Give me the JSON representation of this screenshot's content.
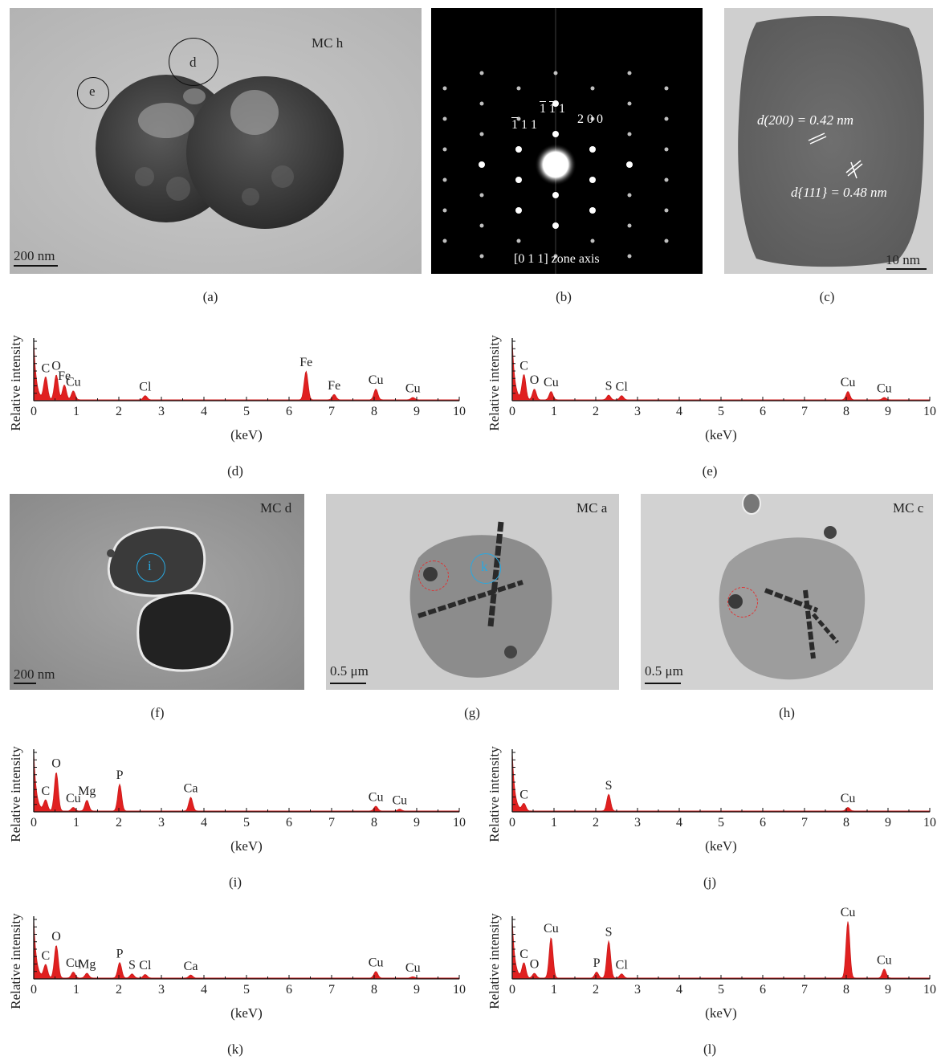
{
  "panels": {
    "a": {
      "label": "(a)",
      "sample": "MC h",
      "circle_1": "d",
      "circle_2": "e",
      "scale": "200 nm"
    },
    "b": {
      "label": "(b)",
      "spot_1": "111",
      "spot_2": "111",
      "spot_3": "200",
      "zone": "[0 1 1] zone axis"
    },
    "c": {
      "label": "(c)",
      "d200": "d(200) = 0.42 nm",
      "d111": "d{111} = 0.48 nm",
      "scale": "10 nm"
    },
    "f": {
      "label": "(f)",
      "sample": "MC d",
      "circle": "i",
      "scale": "200 nm"
    },
    "g": {
      "label": "(g)",
      "sample": "MC a",
      "circle": "k",
      "scale": "0.5 μm"
    },
    "h": {
      "label": "(h)",
      "sample": "MC c",
      "scale": "0.5 μm"
    }
  },
  "chart_data": [
    {
      "id": "d",
      "label": "(d)",
      "type": "area",
      "xlabel": "(keV)",
      "ylabel": "Relative intensity",
      "xlim": [
        0,
        10
      ],
      "xticks": [
        0,
        1,
        2,
        3,
        4,
        5,
        6,
        7,
        8,
        9,
        10
      ],
      "peaks": [
        {
          "x": 0.28,
          "y": 0.38,
          "label": "C"
        },
        {
          "x": 0.53,
          "y": 0.42,
          "label": "O"
        },
        {
          "x": 0.72,
          "y": 0.25,
          "label": "Fe"
        },
        {
          "x": 0.93,
          "y": 0.15,
          "label": "Cu"
        },
        {
          "x": 2.62,
          "y": 0.07,
          "label": "Cl"
        },
        {
          "x": 6.4,
          "y": 0.48,
          "label": "Fe"
        },
        {
          "x": 7.06,
          "y": 0.09,
          "label": "Fe"
        },
        {
          "x": 8.04,
          "y": 0.18,
          "label": "Cu"
        },
        {
          "x": 8.91,
          "y": 0.04,
          "label": "Cu"
        }
      ]
    },
    {
      "id": "e",
      "label": "(e)",
      "type": "area",
      "xlabel": "(keV)",
      "ylabel": "Relative intensity",
      "xlim": [
        0,
        10
      ],
      "xticks": [
        0,
        1,
        2,
        3,
        4,
        5,
        6,
        7,
        8,
        9,
        10
      ],
      "peaks": [
        {
          "x": 0.28,
          "y": 0.42,
          "label": "C"
        },
        {
          "x": 0.53,
          "y": 0.18,
          "label": "O"
        },
        {
          "x": 0.93,
          "y": 0.14,
          "label": "Cu"
        },
        {
          "x": 2.31,
          "y": 0.08,
          "label": "S"
        },
        {
          "x": 2.62,
          "y": 0.07,
          "label": "Cl"
        },
        {
          "x": 8.04,
          "y": 0.14,
          "label": "Cu"
        },
        {
          "x": 8.91,
          "y": 0.04,
          "label": "Cu"
        }
      ]
    },
    {
      "id": "i",
      "label": "(i)",
      "type": "area",
      "xlabel": "(keV)",
      "ylabel": "Relative intensity",
      "xlim": [
        0,
        10
      ],
      "xticks": [
        0,
        1,
        2,
        3,
        4,
        5,
        6,
        7,
        8,
        9,
        10
      ],
      "peaks": [
        {
          "x": 0.28,
          "y": 0.18,
          "label": "C"
        },
        {
          "x": 0.53,
          "y": 0.65,
          "label": "O"
        },
        {
          "x": 0.93,
          "y": 0.06,
          "label": "Cu"
        },
        {
          "x": 1.25,
          "y": 0.18,
          "label": "Mg"
        },
        {
          "x": 2.02,
          "y": 0.45,
          "label": "P"
        },
        {
          "x": 3.69,
          "y": 0.23,
          "label": "Ca"
        },
        {
          "x": 8.04,
          "y": 0.08,
          "label": "Cu"
        },
        {
          "x": 8.6,
          "y": 0.03,
          "label": "Cu"
        }
      ]
    },
    {
      "id": "j",
      "label": "(j)",
      "type": "area",
      "xlabel": "(keV)",
      "ylabel": "Relative intensity",
      "xlim": [
        0,
        10
      ],
      "xticks": [
        0,
        1,
        2,
        3,
        4,
        5,
        6,
        7,
        8,
        9,
        10
      ],
      "peaks": [
        {
          "x": 0.28,
          "y": 0.12,
          "label": "C"
        },
        {
          "x": 2.31,
          "y": 0.28,
          "label": "S"
        },
        {
          "x": 8.04,
          "y": 0.06,
          "label": "Cu"
        }
      ]
    },
    {
      "id": "k",
      "label": "(k)",
      "type": "area",
      "xlabel": "(keV)",
      "ylabel": "Relative intensity",
      "xlim": [
        0,
        10
      ],
      "xticks": [
        0,
        1,
        2,
        3,
        4,
        5,
        6,
        7,
        8,
        9,
        10
      ],
      "peaks": [
        {
          "x": 0.28,
          "y": 0.22,
          "label": "C"
        },
        {
          "x": 0.53,
          "y": 0.55,
          "label": "O"
        },
        {
          "x": 0.93,
          "y": 0.1,
          "label": "Cu"
        },
        {
          "x": 1.25,
          "y": 0.08,
          "label": "Mg"
        },
        {
          "x": 2.02,
          "y": 0.26,
          "label": "P"
        },
        {
          "x": 2.31,
          "y": 0.07,
          "label": "S"
        },
        {
          "x": 2.62,
          "y": 0.06,
          "label": "Cl"
        },
        {
          "x": 3.69,
          "y": 0.05,
          "label": "Ca"
        },
        {
          "x": 8.04,
          "y": 0.11,
          "label": "Cu"
        },
        {
          "x": 8.91,
          "y": 0.02,
          "label": "Cu"
        }
      ]
    },
    {
      "id": "l",
      "label": "(l)",
      "type": "area",
      "xlabel": "(keV)",
      "ylabel": "Relative intensity",
      "xlim": [
        0,
        10
      ],
      "xticks": [
        0,
        1,
        2,
        3,
        4,
        5,
        6,
        7,
        8,
        9,
        10
      ],
      "peaks": [
        {
          "x": 0.28,
          "y": 0.25,
          "label": "C"
        },
        {
          "x": 0.53,
          "y": 0.08,
          "label": "O"
        },
        {
          "x": 0.93,
          "y": 0.68,
          "label": "Cu"
        },
        {
          "x": 2.02,
          "y": 0.1,
          "label": "P"
        },
        {
          "x": 2.31,
          "y": 0.62,
          "label": "S"
        },
        {
          "x": 2.62,
          "y": 0.07,
          "label": "Cl"
        },
        {
          "x": 8.04,
          "y": 0.95,
          "label": "Cu"
        },
        {
          "x": 8.91,
          "y": 0.15,
          "label": "Cu"
        }
      ]
    }
  ]
}
